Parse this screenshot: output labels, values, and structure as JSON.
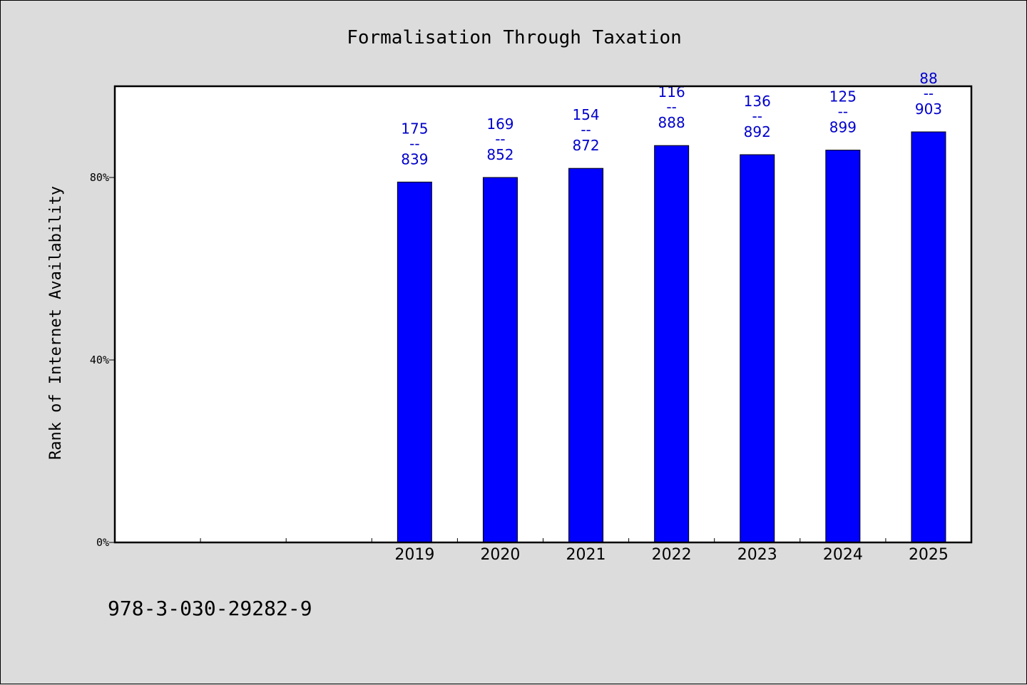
{
  "chart_data": {
    "type": "bar",
    "title": "Formalisation Through Taxation",
    "ylabel": "Rank of Internet Availability",
    "xlabel": "",
    "categories": [
      "",
      "",
      "",
      "2019",
      "2020",
      "2021",
      "2022",
      "2023",
      "2024",
      "2025"
    ],
    "values": [
      null,
      null,
      null,
      0.79,
      0.8,
      0.82,
      0.87,
      0.85,
      0.86,
      0.9
    ],
    "data_labels": [
      null,
      null,
      null,
      {
        "top": "175",
        "mid": "--",
        "bottom": "839"
      },
      {
        "top": "169",
        "mid": "--",
        "bottom": "852"
      },
      {
        "top": "154",
        "mid": "--",
        "bottom": "872"
      },
      {
        "top": "116",
        "mid": "--",
        "bottom": "888"
      },
      {
        "top": "136",
        "mid": "--",
        "bottom": "892"
      },
      {
        "top": "125",
        "mid": "--",
        "bottom": "899"
      },
      {
        "top": "88",
        "mid": "--",
        "bottom": "903"
      }
    ],
    "ylim": [
      0,
      1.0
    ],
    "yticks": [
      0,
      0.4,
      0.8
    ],
    "ytick_labels": [
      "0%",
      "40%",
      "80%"
    ],
    "grid": false,
    "legend": "none",
    "bar_color": "#0000ff",
    "label_color": "#0000cc",
    "background": "#dcdcdc",
    "plot_background": "#ffffff"
  },
  "footer": {
    "isbn": "978-3-030-29282-9"
  }
}
